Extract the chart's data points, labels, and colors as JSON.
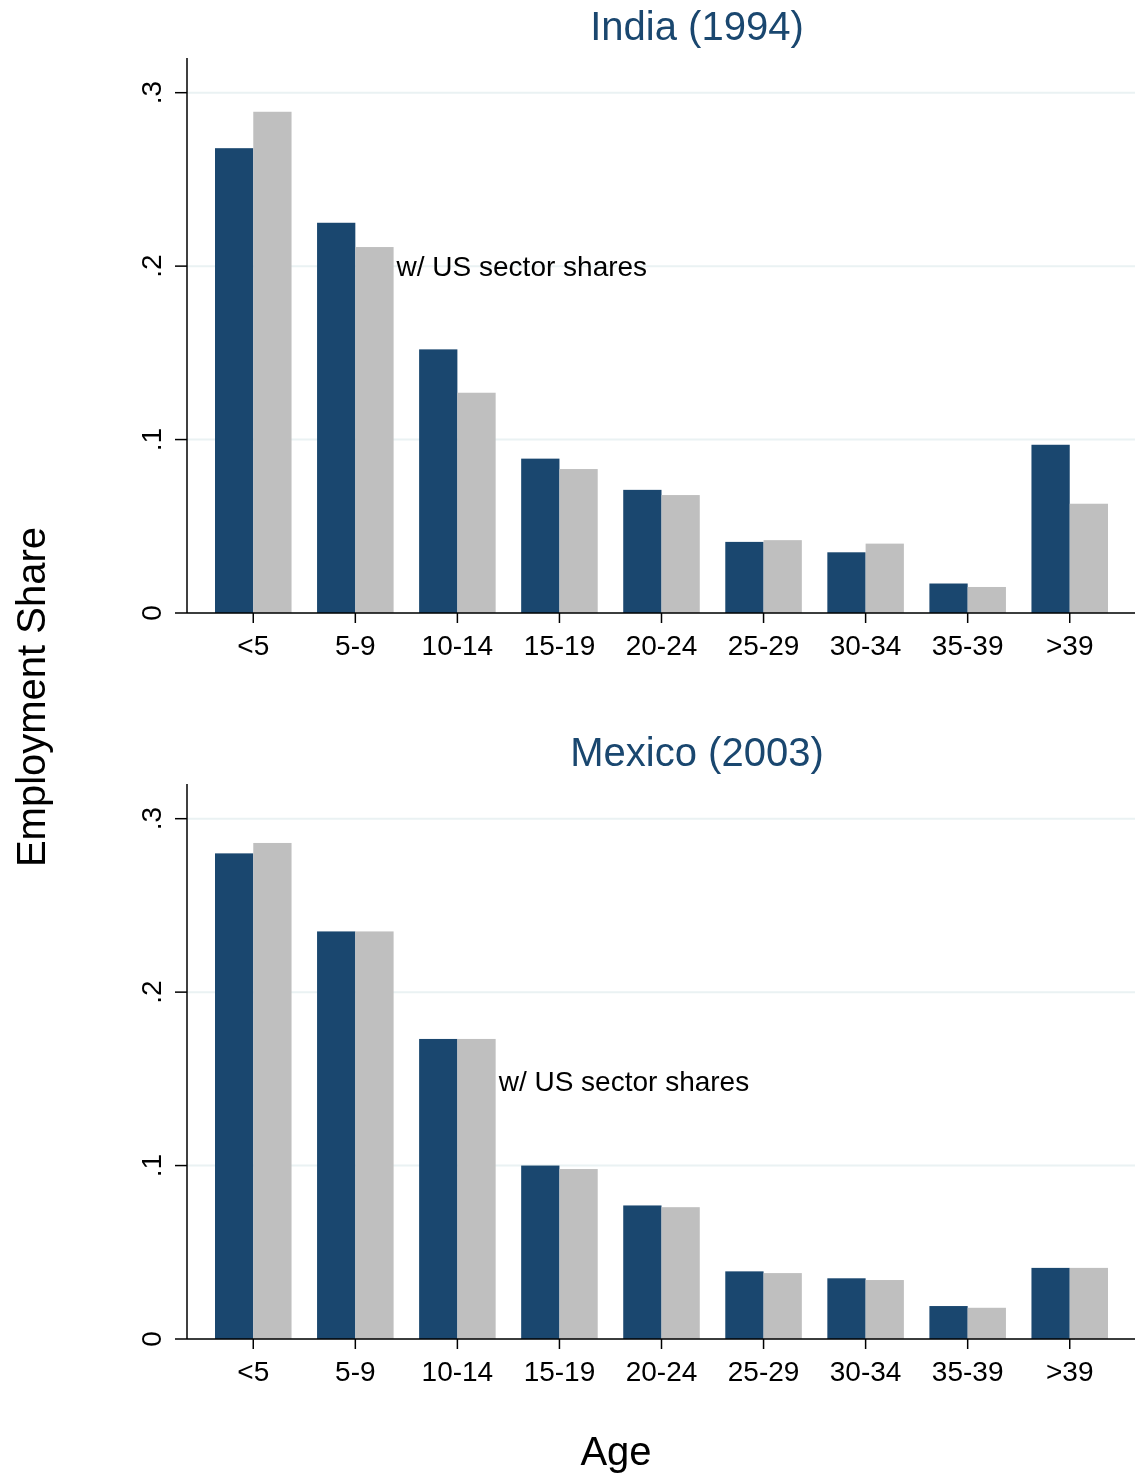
{
  "chart_data": [
    {
      "type": "bar",
      "title": "India (1994)",
      "ylabel": "Employment Share",
      "categories": [
        "<5",
        "5-9",
        "10-14",
        "15-19",
        "20-24",
        "25-29",
        "30-34",
        "35-39",
        ">39"
      ],
      "series": [
        {
          "color": "#1a476f",
          "values": [
            0.268,
            0.225,
            0.152,
            0.089,
            0.071,
            0.041,
            0.035,
            0.017,
            0.097
          ]
        },
        {
          "color": "#bfbfbf",
          "values": [
            0.289,
            0.211,
            0.127,
            0.083,
            0.068,
            0.042,
            0.04,
            0.015,
            0.063
          ]
        }
      ],
      "ylim": [
        0,
        0.32
      ],
      "yticks": [
        {
          "value": 0,
          "label": "0"
        },
        {
          "value": 0.1,
          "label": ".1"
        },
        {
          "value": 0.2,
          "label": ".2"
        },
        {
          "value": 0.3,
          "label": ".3"
        }
      ],
      "grid": "y",
      "annotations": [
        {
          "text": "w/ US sector shares",
          "x": "5-9",
          "y": 0.2
        }
      ]
    },
    {
      "type": "bar",
      "title": "Mexico (2003)",
      "xlabel": "Age",
      "categories": [
        "<5",
        "5-9",
        "10-14",
        "15-19",
        "20-24",
        "25-29",
        "30-34",
        "35-39",
        ">39"
      ],
      "series": [
        {
          "color": "#1a476f",
          "values": [
            0.28,
            0.235,
            0.173,
            0.1,
            0.077,
            0.039,
            0.035,
            0.019,
            0.041
          ]
        },
        {
          "color": "#bfbfbf",
          "values": [
            0.286,
            0.235,
            0.173,
            0.098,
            0.076,
            0.038,
            0.034,
            0.018,
            0.041
          ]
        }
      ],
      "ylim": [
        0,
        0.32
      ],
      "yticks": [
        {
          "value": 0,
          "label": "0"
        },
        {
          "value": 0.1,
          "label": ".1"
        },
        {
          "value": 0.2,
          "label": ".2"
        },
        {
          "value": 0.3,
          "label": ".3"
        }
      ],
      "grid": "y",
      "annotations": [
        {
          "text": "w/ US sector shares",
          "x": "10-14",
          "y": 0.149
        }
      ]
    }
  ]
}
